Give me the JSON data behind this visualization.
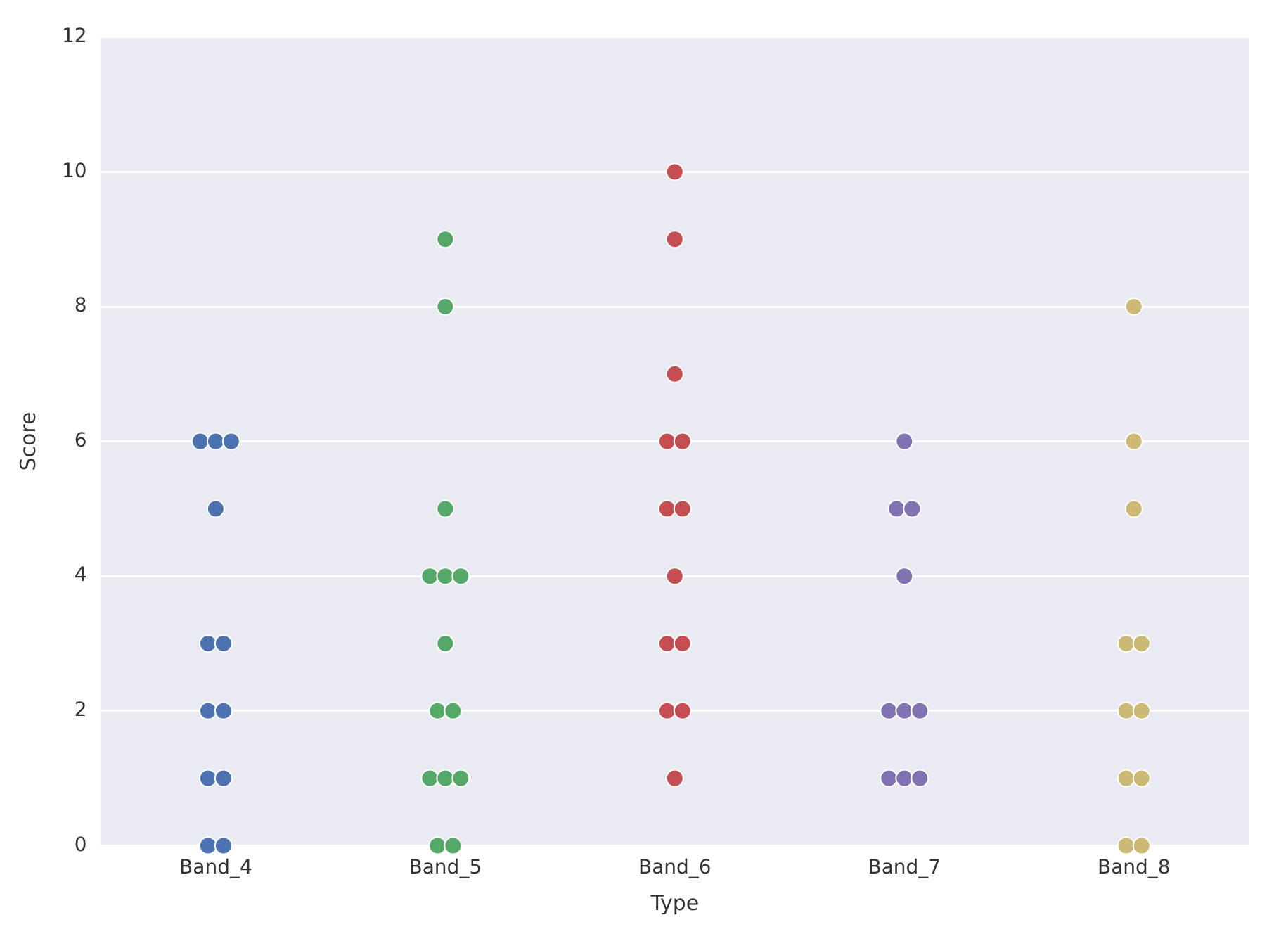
{
  "chart_data": {
    "type": "scatter",
    "xlabel": "Type",
    "ylabel": "Score",
    "categories": [
      "Band_4",
      "Band_5",
      "Band_6",
      "Band_7",
      "Band_8"
    ],
    "ylim": [
      0,
      12
    ],
    "yticks": [
      0,
      2,
      4,
      6,
      8,
      10,
      12
    ],
    "grid": "y",
    "legend": false,
    "marker": "circle",
    "series": [
      {
        "color": "#4c72b0",
        "x": [
          "Band_4",
          "Band_4",
          "Band_4",
          "Band_4",
          "Band_4",
          "Band_4",
          "Band_4",
          "Band_4",
          "Band_4",
          "Band_4",
          "Band_4",
          "Band_4"
        ],
        "values": [
          6,
          6,
          6,
          5,
          3,
          3,
          2,
          2,
          1,
          1,
          0,
          0
        ]
      },
      {
        "color": "#55a868",
        "x": [
          "Band_5",
          "Band_5",
          "Band_5",
          "Band_5",
          "Band_5",
          "Band_5",
          "Band_5",
          "Band_5",
          "Band_5",
          "Band_5",
          "Band_5",
          "Band_5",
          "Band_5",
          "Band_5"
        ],
        "values": [
          9,
          8,
          5,
          4,
          4,
          4,
          3,
          2,
          2,
          1,
          1,
          1,
          0,
          0
        ]
      },
      {
        "color": "#c44e52",
        "x": [
          "Band_6",
          "Band_6",
          "Band_6",
          "Band_6",
          "Band_6",
          "Band_6",
          "Band_6",
          "Band_6",
          "Band_6",
          "Band_6",
          "Band_6",
          "Band_6",
          "Band_6"
        ],
        "values": [
          10,
          9,
          7,
          6,
          6,
          5,
          5,
          4,
          3,
          3,
          2,
          2,
          1
        ]
      },
      {
        "color": "#8172b2",
        "x": [
          "Band_7",
          "Band_7",
          "Band_7",
          "Band_7",
          "Band_7",
          "Band_7",
          "Band_7",
          "Band_7",
          "Band_7",
          "Band_7"
        ],
        "values": [
          6,
          5,
          5,
          4,
          2,
          2,
          2,
          1,
          1,
          1
        ]
      },
      {
        "color": "#ccb974",
        "x": [
          "Band_8",
          "Band_8",
          "Band_8",
          "Band_8",
          "Band_8",
          "Band_8",
          "Band_8",
          "Band_8",
          "Band_8",
          "Band_8",
          "Band_8"
        ],
        "values": [
          8,
          6,
          5,
          3,
          3,
          2,
          2,
          1,
          1,
          0,
          0
        ]
      }
    ]
  }
}
